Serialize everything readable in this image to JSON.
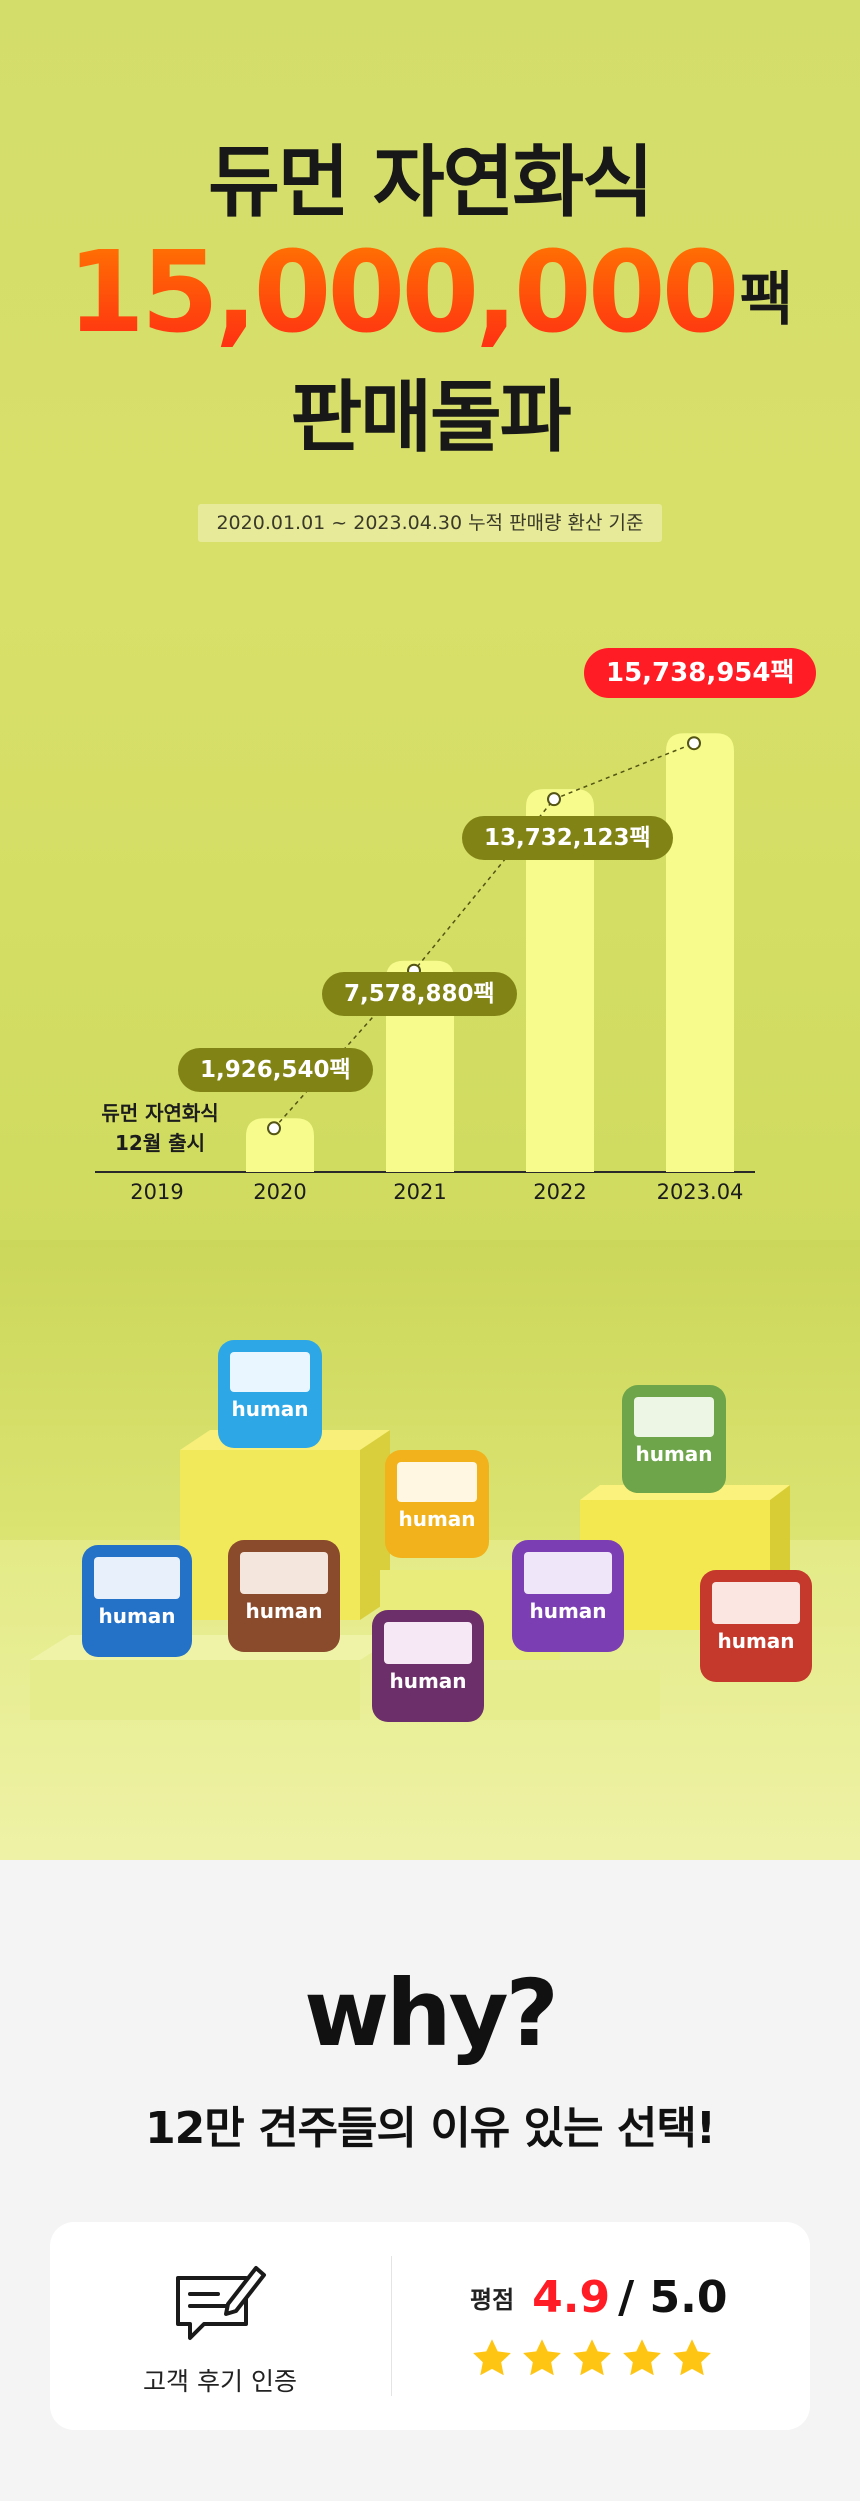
{
  "hero": {
    "title_line1": "듀먼 자연화식",
    "big_number": "15,000,000",
    "big_unit": "팩",
    "title_line3": "판매돌파",
    "period": "2020.01.01 ~ 2023.04.30 누적 판매량 환산 기준",
    "launch_note_line1": "듀먼 자연화식",
    "launch_note_line2": "12월 출시",
    "colors": {
      "accent": "#ff3a12",
      "label_bg": "#818415",
      "highlight": "#ff1c25",
      "bar": "#f6fb8c",
      "background": "#d6df68"
    }
  },
  "chart_data": {
    "type": "bar",
    "categories": [
      "2019",
      "2020",
      "2021",
      "2022",
      "2023.04"
    ],
    "values": [
      0,
      1926540,
      7578880,
      13732123,
      15738954
    ],
    "value_labels": [
      "",
      "1,926,540팩",
      "7,578,880팩",
      "13,732,123팩",
      "15,738,954팩"
    ],
    "highlight_index": 4,
    "cumulative_trend_line": true,
    "ylim": [
      0,
      16500000
    ],
    "xlabel": "",
    "ylabel": ""
  },
  "why": {
    "title": "why?",
    "subtitle": "12만 견주들의 이유 있는 선택!",
    "review_cert_label": "고객 후기 인증",
    "review_icon": "review-writing-icon",
    "rating_label": "평점",
    "rating_score": "4.9",
    "rating_total": "/ 5.0",
    "stars_filled": 5,
    "star_color": "#ffc513"
  }
}
